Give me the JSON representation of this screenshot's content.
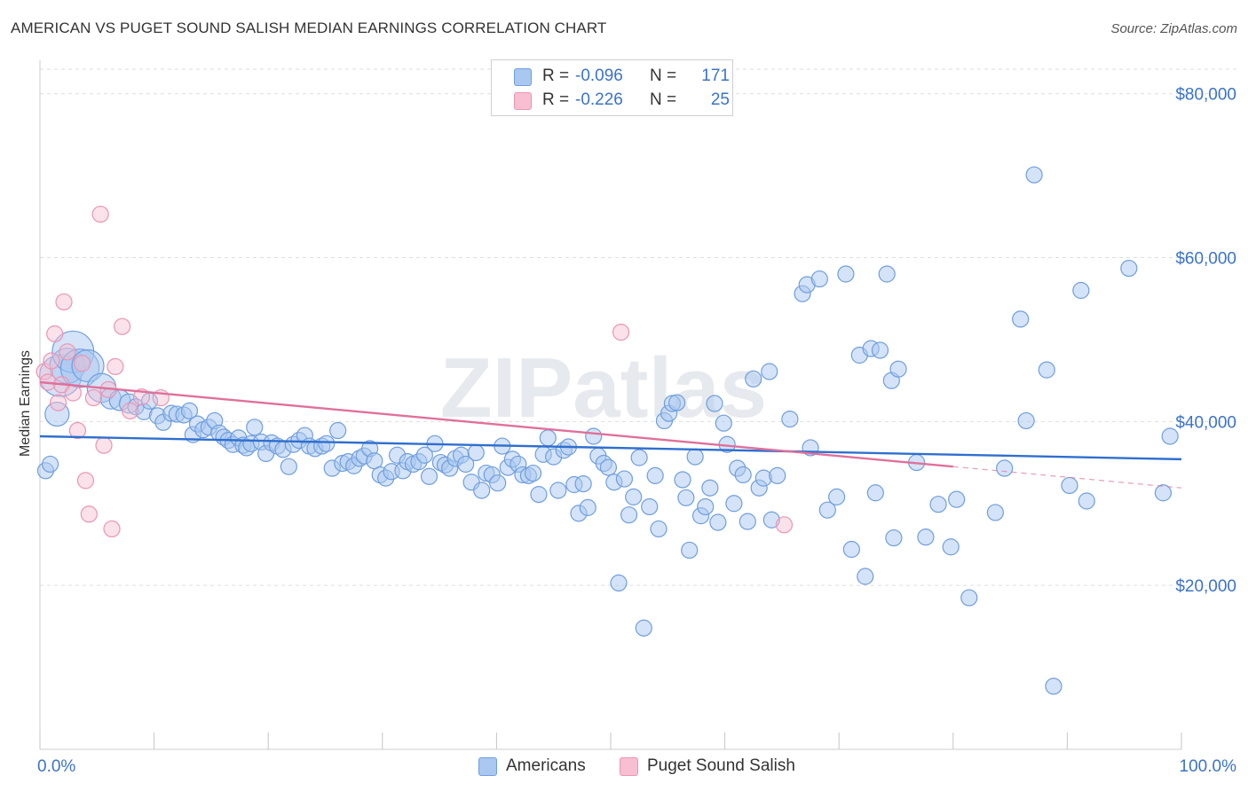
{
  "title": "AMERICAN VS PUGET SOUND SALISH MEDIAN EARNINGS CORRELATION CHART",
  "source": "Source: ZipAtlas.com",
  "watermark": "ZIPatlas",
  "legend_top": [
    {
      "r_label": "R =",
      "r_value": "-0.096",
      "n_label": "N =",
      "n_value": "171"
    },
    {
      "r_label": "R =",
      "r_value": "-0.226",
      "n_label": "N =",
      "n_value": "25"
    }
  ],
  "legend_bottom": [
    {
      "label": "Americans"
    },
    {
      "label": "Puget Sound Salish"
    }
  ],
  "colors": {
    "americans_fill": "#a9c7ef",
    "americans_stroke": "#6f9ee0",
    "americans_line": "#2f6fcf",
    "salish_fill": "#f7bfd1",
    "salish_stroke": "#ec94b2",
    "salish_line": "#e0709a",
    "tick_text": "#3b73c8",
    "grid": "#dddddd"
  },
  "chart_data": {
    "type": "scatter",
    "title": "AMERICAN VS PUGET SOUND SALISH MEDIAN EARNINGS CORRELATION CHART",
    "xlabel": "",
    "ylabel": "Median Earnings",
    "xlim": [
      0,
      100
    ],
    "ylim": [
      0,
      83000
    ],
    "x_tick_labels": [
      "0.0%",
      "100.0%"
    ],
    "y_ticks": [
      {
        "value": 20000,
        "label": "$20,000"
      },
      {
        "value": 40000,
        "label": "$40,000"
      },
      {
        "value": 60000,
        "label": "$60,000"
      },
      {
        "value": 80000,
        "label": "$80,000"
      }
    ],
    "grid": true,
    "legend_position": "top-center",
    "series": [
      {
        "name": "Americans",
        "r": -0.096,
        "n": 171,
        "trend": {
          "x": [
            0,
            100
          ],
          "y": [
            38200,
            35400
          ]
        },
        "points": [
          {
            "x": 0.5,
            "y": 34000
          },
          {
            "x": 0.9,
            "y": 34800
          },
          {
            "x": 1.5,
            "y": 40900,
            "s": 1.5
          },
          {
            "x": 1.8,
            "y": 45600,
            "s": 2.6
          },
          {
            "x": 2.4,
            "y": 46800,
            "s": 2.2
          },
          {
            "x": 2.9,
            "y": 48500,
            "s": 2.6
          },
          {
            "x": 3.5,
            "y": 46500,
            "s": 2.4
          },
          {
            "x": 4.2,
            "y": 46800,
            "s": 2.0
          },
          {
            "x": 5.4,
            "y": 44100,
            "s": 1.8
          },
          {
            "x": 6.2,
            "y": 42800,
            "s": 1.3
          },
          {
            "x": 7.0,
            "y": 42600,
            "s": 1.3
          },
          {
            "x": 7.8,
            "y": 42200,
            "s": 1.2
          },
          {
            "x": 8.4,
            "y": 41800
          },
          {
            "x": 9.1,
            "y": 41200
          },
          {
            "x": 9.6,
            "y": 42500
          },
          {
            "x": 10.3,
            "y": 40700
          },
          {
            "x": 10.8,
            "y": 39900
          },
          {
            "x": 11.5,
            "y": 41000
          },
          {
            "x": 12.0,
            "y": 40900
          },
          {
            "x": 12.6,
            "y": 40800
          },
          {
            "x": 13.1,
            "y": 41300
          },
          {
            "x": 13.4,
            "y": 38400
          },
          {
            "x": 13.8,
            "y": 39700
          },
          {
            "x": 14.3,
            "y": 39000
          },
          {
            "x": 14.8,
            "y": 39300
          },
          {
            "x": 15.3,
            "y": 40100
          },
          {
            "x": 15.7,
            "y": 38600
          },
          {
            "x": 16.1,
            "y": 38100
          },
          {
            "x": 16.5,
            "y": 37700
          },
          {
            "x": 16.9,
            "y": 37200
          },
          {
            "x": 17.4,
            "y": 38000
          },
          {
            "x": 17.8,
            "y": 37100
          },
          {
            "x": 18.1,
            "y": 36800
          },
          {
            "x": 18.5,
            "y": 37300
          },
          {
            "x": 18.8,
            "y": 39300
          },
          {
            "x": 19.4,
            "y": 37500
          },
          {
            "x": 19.8,
            "y": 36100
          },
          {
            "x": 20.3,
            "y": 37400
          },
          {
            "x": 20.8,
            "y": 37000
          },
          {
            "x": 21.3,
            "y": 36600
          },
          {
            "x": 21.8,
            "y": 34500
          },
          {
            "x": 22.2,
            "y": 37200
          },
          {
            "x": 22.7,
            "y": 37700
          },
          {
            "x": 23.2,
            "y": 38300
          },
          {
            "x": 23.6,
            "y": 37000
          },
          {
            "x": 24.1,
            "y": 36700
          },
          {
            "x": 24.7,
            "y": 37000
          },
          {
            "x": 25.1,
            "y": 37300
          },
          {
            "x": 25.6,
            "y": 34300
          },
          {
            "x": 26.1,
            "y": 38900
          },
          {
            "x": 26.5,
            "y": 34900
          },
          {
            "x": 27.0,
            "y": 35100
          },
          {
            "x": 27.5,
            "y": 34600
          },
          {
            "x": 28.0,
            "y": 35500
          },
          {
            "x": 28.4,
            "y": 35800
          },
          {
            "x": 28.9,
            "y": 36700
          },
          {
            "x": 29.3,
            "y": 35200
          },
          {
            "x": 29.8,
            "y": 33500
          },
          {
            "x": 30.3,
            "y": 33100
          },
          {
            "x": 30.8,
            "y": 33900
          },
          {
            "x": 31.3,
            "y": 35900
          },
          {
            "x": 31.8,
            "y": 34000
          },
          {
            "x": 32.2,
            "y": 35100
          },
          {
            "x": 32.7,
            "y": 34800
          },
          {
            "x": 33.2,
            "y": 35100
          },
          {
            "x": 33.7,
            "y": 35900
          },
          {
            "x": 34.1,
            "y": 33300
          },
          {
            "x": 34.6,
            "y": 37300
          },
          {
            "x": 35.1,
            "y": 35000
          },
          {
            "x": 35.5,
            "y": 34700
          },
          {
            "x": 35.9,
            "y": 34300
          },
          {
            "x": 36.4,
            "y": 35500
          },
          {
            "x": 36.9,
            "y": 35900
          },
          {
            "x": 37.3,
            "y": 34800
          },
          {
            "x": 37.8,
            "y": 32600
          },
          {
            "x": 38.2,
            "y": 36200
          },
          {
            "x": 38.7,
            "y": 31600
          },
          {
            "x": 39.1,
            "y": 33700
          },
          {
            "x": 39.6,
            "y": 33500
          },
          {
            "x": 40.1,
            "y": 32500
          },
          {
            "x": 40.5,
            "y": 37000
          },
          {
            "x": 41.0,
            "y": 34400
          },
          {
            "x": 41.4,
            "y": 35400
          },
          {
            "x": 41.9,
            "y": 34800
          },
          {
            "x": 42.3,
            "y": 33500
          },
          {
            "x": 42.8,
            "y": 33400
          },
          {
            "x": 43.2,
            "y": 33700
          },
          {
            "x": 43.7,
            "y": 31100
          },
          {
            "x": 44.1,
            "y": 36000
          },
          {
            "x": 44.5,
            "y": 38000
          },
          {
            "x": 45.0,
            "y": 35700
          },
          {
            "x": 45.4,
            "y": 31600
          },
          {
            "x": 45.9,
            "y": 36500
          },
          {
            "x": 46.3,
            "y": 36900
          },
          {
            "x": 46.8,
            "y": 32300
          },
          {
            "x": 47.2,
            "y": 28800
          },
          {
            "x": 47.6,
            "y": 32400
          },
          {
            "x": 48.0,
            "y": 29500
          },
          {
            "x": 48.5,
            "y": 38200
          },
          {
            "x": 48.9,
            "y": 35800
          },
          {
            "x": 49.4,
            "y": 34900
          },
          {
            "x": 49.8,
            "y": 34400
          },
          {
            "x": 50.3,
            "y": 32600
          },
          {
            "x": 50.7,
            "y": 20300
          },
          {
            "x": 51.2,
            "y": 33000
          },
          {
            "x": 51.6,
            "y": 28600
          },
          {
            "x": 52.0,
            "y": 30800
          },
          {
            "x": 52.5,
            "y": 35600
          },
          {
            "x": 52.9,
            "y": 14800
          },
          {
            "x": 53.4,
            "y": 29600
          },
          {
            "x": 53.9,
            "y": 33400
          },
          {
            "x": 54.2,
            "y": 26900
          },
          {
            "x": 54.7,
            "y": 40100
          },
          {
            "x": 55.1,
            "y": 41000
          },
          {
            "x": 55.4,
            "y": 42200
          },
          {
            "x": 55.8,
            "y": 42300
          },
          {
            "x": 56.3,
            "y": 32900
          },
          {
            "x": 56.6,
            "y": 30700
          },
          {
            "x": 56.9,
            "y": 24300
          },
          {
            "x": 57.4,
            "y": 35700
          },
          {
            "x": 57.9,
            "y": 28500
          },
          {
            "x": 58.3,
            "y": 29600
          },
          {
            "x": 58.7,
            "y": 31900
          },
          {
            "x": 59.1,
            "y": 42200
          },
          {
            "x": 59.4,
            "y": 27700
          },
          {
            "x": 59.9,
            "y": 39800
          },
          {
            "x": 60.2,
            "y": 37200
          },
          {
            "x": 60.8,
            "y": 30000
          },
          {
            "x": 61.1,
            "y": 34300
          },
          {
            "x": 61.6,
            "y": 33500
          },
          {
            "x": 62.0,
            "y": 27800
          },
          {
            "x": 62.5,
            "y": 45200
          },
          {
            "x": 63.0,
            "y": 31900
          },
          {
            "x": 63.4,
            "y": 33100
          },
          {
            "x": 63.9,
            "y": 46100
          },
          {
            "x": 64.1,
            "y": 28000
          },
          {
            "x": 64.6,
            "y": 33400
          },
          {
            "x": 65.7,
            "y": 40300
          },
          {
            "x": 66.8,
            "y": 55600
          },
          {
            "x": 67.2,
            "y": 56700
          },
          {
            "x": 67.5,
            "y": 36800
          },
          {
            "x": 68.3,
            "y": 57400
          },
          {
            "x": 69.0,
            "y": 29200
          },
          {
            "x": 69.8,
            "y": 30800
          },
          {
            "x": 70.6,
            "y": 58000
          },
          {
            "x": 71.1,
            "y": 24400
          },
          {
            "x": 71.8,
            "y": 48100
          },
          {
            "x": 72.3,
            "y": 21100
          },
          {
            "x": 72.8,
            "y": 48900
          },
          {
            "x": 73.2,
            "y": 31300
          },
          {
            "x": 73.6,
            "y": 48700
          },
          {
            "x": 74.2,
            "y": 58000
          },
          {
            "x": 74.6,
            "y": 45000
          },
          {
            "x": 75.2,
            "y": 46400
          },
          {
            "x": 74.8,
            "y": 25800
          },
          {
            "x": 76.8,
            "y": 35000
          },
          {
            "x": 77.6,
            "y": 25900
          },
          {
            "x": 78.7,
            "y": 29900
          },
          {
            "x": 79.8,
            "y": 24700
          },
          {
            "x": 80.3,
            "y": 30500
          },
          {
            "x": 81.4,
            "y": 18500
          },
          {
            "x": 83.7,
            "y": 28900
          },
          {
            "x": 84.5,
            "y": 34300
          },
          {
            "x": 85.9,
            "y": 52500
          },
          {
            "x": 86.4,
            "y": 40100
          },
          {
            "x": 87.1,
            "y": 70100
          },
          {
            "x": 88.2,
            "y": 46300
          },
          {
            "x": 88.8,
            "y": 7700
          },
          {
            "x": 90.2,
            "y": 32200
          },
          {
            "x": 91.2,
            "y": 56000
          },
          {
            "x": 91.7,
            "y": 30300
          },
          {
            "x": 95.4,
            "y": 58700
          },
          {
            "x": 98.4,
            "y": 31300
          },
          {
            "x": 99.0,
            "y": 38200
          }
        ]
      },
      {
        "name": "Puget Sound Salish",
        "r": -0.226,
        "n": 25,
        "trend": {
          "x": [
            0,
            80
          ],
          "y": [
            44800,
            34500
          ]
        },
        "trend_dashed": {
          "x": [
            80,
            100
          ],
          "y": [
            34500,
            31900
          ]
        },
        "points": [
          {
            "x": 0.4,
            "y": 46100
          },
          {
            "x": 0.7,
            "y": 44800
          },
          {
            "x": 1.0,
            "y": 47400
          },
          {
            "x": 1.3,
            "y": 50700
          },
          {
            "x": 1.6,
            "y": 42300
          },
          {
            "x": 1.9,
            "y": 44500
          },
          {
            "x": 2.1,
            "y": 54600
          },
          {
            "x": 2.4,
            "y": 48500
          },
          {
            "x": 2.9,
            "y": 43500
          },
          {
            "x": 3.3,
            "y": 38900
          },
          {
            "x": 3.7,
            "y": 47100
          },
          {
            "x": 4.0,
            "y": 32800
          },
          {
            "x": 4.3,
            "y": 28700
          },
          {
            "x": 4.7,
            "y": 42900
          },
          {
            "x": 5.3,
            "y": 65300
          },
          {
            "x": 5.6,
            "y": 37100
          },
          {
            "x": 6.0,
            "y": 43900
          },
          {
            "x": 6.3,
            "y": 26900
          },
          {
            "x": 6.6,
            "y": 46700
          },
          {
            "x": 7.2,
            "y": 51600
          },
          {
            "x": 7.9,
            "y": 41300
          },
          {
            "x": 8.9,
            "y": 43000
          },
          {
            "x": 10.6,
            "y": 42900
          },
          {
            "x": 50.9,
            "y": 50900
          },
          {
            "x": 65.2,
            "y": 27400
          }
        ]
      }
    ]
  }
}
